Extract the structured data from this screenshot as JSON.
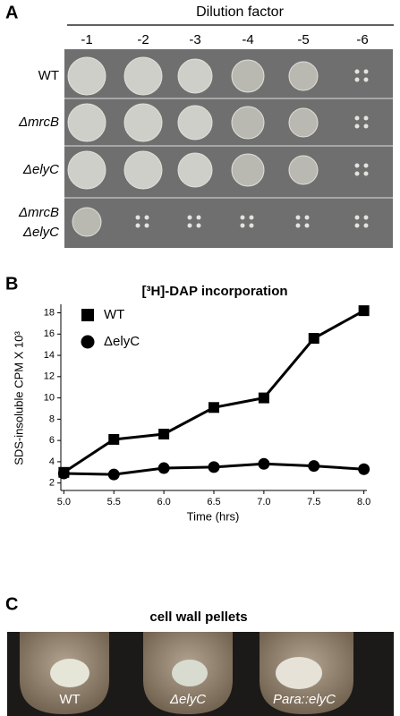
{
  "panel_a": {
    "letter": "A",
    "title": "Dilution factor",
    "columns": [
      "-1",
      "-2",
      "-3",
      "-4",
      "-5",
      "-6"
    ],
    "rows": [
      "WT",
      "ΔmrcB",
      "ΔelyC",
      [
        "ΔmrcB",
        "ΔelyC"
      ]
    ]
  },
  "panel_b": {
    "letter": "B"
  },
  "chart_data": {
    "type": "line",
    "title": "[³H]-DAP incorporation",
    "x_label": "Time (hrs)",
    "y_label": "SDS-insoluble CPM X 10³",
    "x": [
      5.0,
      5.5,
      6.0,
      6.5,
      7.0,
      7.5,
      8.0
    ],
    "series": [
      {
        "name": "WT",
        "color": "#000000",
        "marker": "square",
        "values": [
          3.0,
          6.1,
          6.6,
          9.1,
          10.0,
          15.6,
          18.2
        ]
      },
      {
        "name": "ΔelyC",
        "color": "#000000",
        "marker": "circle",
        "values": [
          2.9,
          2.8,
          3.4,
          3.5,
          3.8,
          3.6,
          3.3
        ]
      }
    ],
    "xlim": [
      4.97,
      8.03
    ],
    "ylim": [
      1.3,
      18.8
    ],
    "xticks": [
      {
        "value": 5.0,
        "label": "5.0"
      },
      {
        "value": 5.5,
        "label": "5.5"
      },
      {
        "value": 6.0,
        "label": "6.0"
      },
      {
        "value": 6.5,
        "label": "6.5"
      },
      {
        "value": 7.0,
        "label": "7.0"
      },
      {
        "value": 7.5,
        "label": "7.5"
      },
      {
        "value": 8.0,
        "label": "8.0"
      }
    ],
    "yticks": [
      2,
      4,
      6,
      8,
      10,
      12,
      14,
      16,
      18
    ],
    "legend": "upper left"
  },
  "panel_c": {
    "letter": "C",
    "title": "cell wall pellets",
    "labels": [
      "WT",
      "ΔelyC",
      "Para::elyC"
    ]
  }
}
